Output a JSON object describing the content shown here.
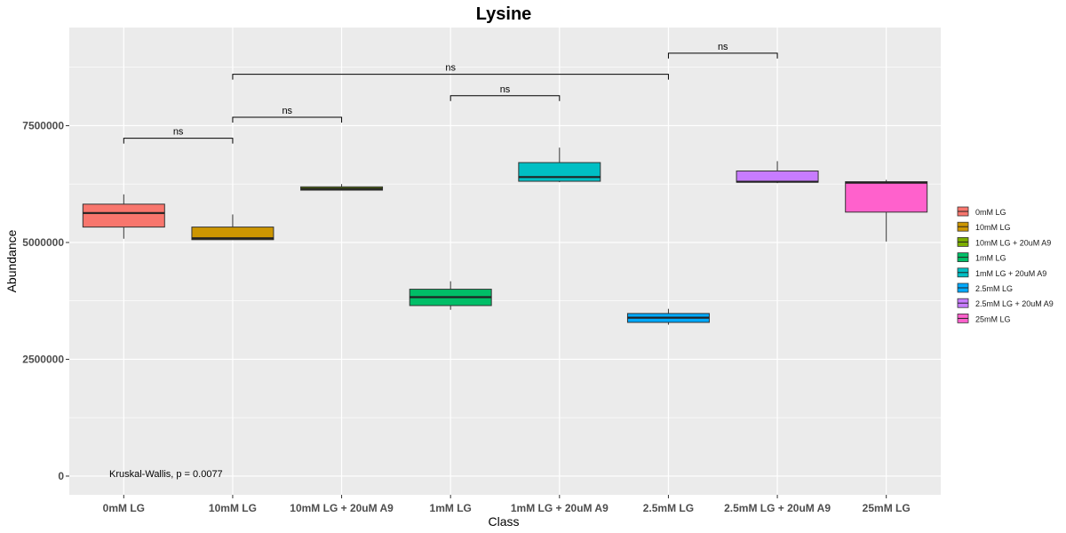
{
  "chart_data": {
    "type": "boxplot",
    "title": "Lysine",
    "xlabel": "Class",
    "ylabel": "Abundance",
    "ylim": [
      -400000,
      9600000
    ],
    "yticks": [
      0,
      2500000,
      5000000,
      7500000
    ],
    "ytick_labels": [
      "0",
      "2500000",
      "5000000",
      "7500000"
    ],
    "categories": [
      "0mM LG",
      "10mM LG",
      "10mM LG + 20uM A9",
      "1mM LG",
      "1mM LG + 20uM A9",
      "2.5mM LG",
      "2.5mM LG + 20uM A9",
      "25mM LG"
    ],
    "colors": [
      "#F8766D",
      "#CD9600",
      "#7CAE00",
      "#00BE67",
      "#00BFC4",
      "#00A9FF",
      "#C77CFF",
      "#FF61CC"
    ],
    "boxes": [
      {
        "min": 5080000,
        "q1": 5330000,
        "median": 5630000,
        "q3": 5820000,
        "max": 6030000
      },
      {
        "min": 5060000,
        "q1": 5060000,
        "median": 5090000,
        "q3": 5330000,
        "max": 5600000
      },
      {
        "min": 6120000,
        "q1": 6120000,
        "median": 6150000,
        "q3": 6190000,
        "max": 6250000
      },
      {
        "min": 3560000,
        "q1": 3650000,
        "median": 3830000,
        "q3": 4000000,
        "max": 4170000
      },
      {
        "min": 6290000,
        "q1": 6310000,
        "median": 6400000,
        "q3": 6710000,
        "max": 7030000
      },
      {
        "min": 3240000,
        "q1": 3290000,
        "median": 3390000,
        "q3": 3480000,
        "max": 3580000
      },
      {
        "min": 6270000,
        "q1": 6290000,
        "median": 6300000,
        "q3": 6530000,
        "max": 6740000
      },
      {
        "min": 5020000,
        "q1": 5650000,
        "median": 6280000,
        "q3": 6300000,
        "max": 6340000
      }
    ],
    "comparisons": [
      {
        "from": 0,
        "to": 1,
        "y": 7230000,
        "label": "ns"
      },
      {
        "from": 1,
        "to": 2,
        "y": 7680000,
        "label": "ns"
      },
      {
        "from": 3,
        "to": 4,
        "y": 8140000,
        "label": "ns"
      },
      {
        "from": 1,
        "to": 5,
        "y": 8600000,
        "label": "ns"
      },
      {
        "from": 5,
        "to": 6,
        "y": 9050000,
        "label": "ns"
      }
    ],
    "annotation": "Kruskal-Wallis, p = 0.0077",
    "grid": true,
    "legend_position": "right"
  }
}
